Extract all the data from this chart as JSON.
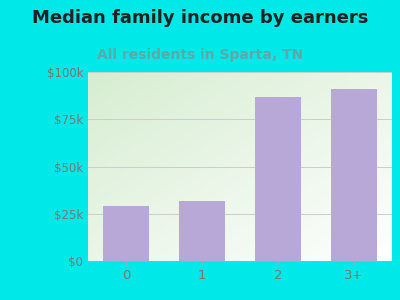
{
  "title": "Median family income by earners",
  "subtitle": "All residents in Sparta, TN",
  "categories": [
    "0",
    "1",
    "2",
    "3+"
  ],
  "values": [
    29000,
    32000,
    87000,
    91000
  ],
  "bar_color": "#b8a8d8",
  "outer_bg": "#00e8e8",
  "gradient_top_left": "#d6ecd0",
  "gradient_bottom_right": "#f8fff8",
  "title_color": "#222222",
  "subtitle_color": "#5aaaaa",
  "tick_label_color": "#777777",
  "ylim": [
    0,
    100000
  ],
  "yticks": [
    0,
    25000,
    50000,
    75000,
    100000
  ],
  "ytick_labels": [
    "$0",
    "$25k",
    "$50k",
    "$75k",
    "$100k"
  ],
  "title_fontsize": 13,
  "subtitle_fontsize": 10
}
